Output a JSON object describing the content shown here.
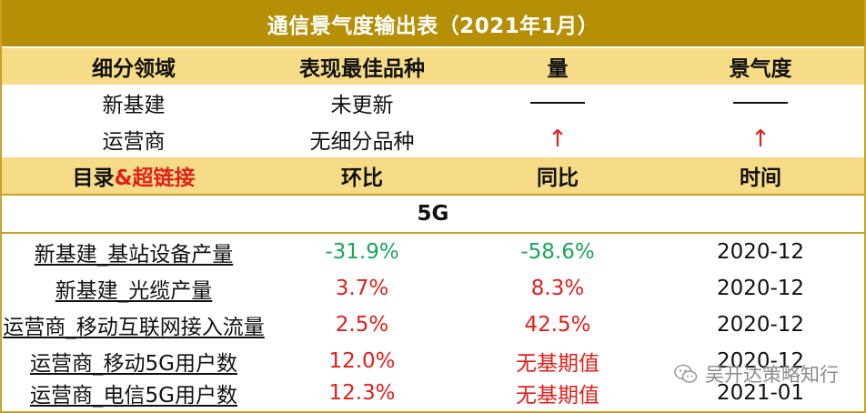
{
  "title": "通信景气度输出表（2021年1月）",
  "summary_header": {
    "col1": "细分领域",
    "col2": "表现最佳品种",
    "col3": "量",
    "col4": "景气度"
  },
  "summary_rows": [
    {
      "domain": "新基建",
      "best": "未更新",
      "volume": "",
      "climate": ""
    },
    {
      "domain": "运营商",
      "best": "无细分品种",
      "volume": "↑",
      "climate": "↑"
    }
  ],
  "detail_header": {
    "col1_main": "目录",
    "col1_link": "&超链接",
    "col2": "环比",
    "col3": "同比",
    "col4": "时间"
  },
  "section_label": "5G",
  "detail_rows": [
    {
      "name": "新基建_基站设备产量",
      "mom": "-31.9%",
      "yoy": "-58.6%",
      "time": "2020-12"
    },
    {
      "name": "新基建_光缆产量",
      "mom": "3.7%",
      "yoy": "8.3%",
      "time": "2020-12"
    },
    {
      "name": "运营商_移动互联网接入流量",
      "mom": "2.5%",
      "yoy": "42.5%",
      "time": "2020-12"
    },
    {
      "name": "运营商_移动5G用户数",
      "mom": "12.0%",
      "yoy": "无基期值",
      "time": "2020-12"
    },
    {
      "name": "运营商_电信5G用户数",
      "mom": "12.3%",
      "yoy": "无基期值",
      "time": "2021-01"
    }
  ],
  "watermark": {
    "text": "吴开达策略知行",
    "icon": "wechat-icon"
  },
  "colors": {
    "title_bg": "#b58f06",
    "header_bg": "#f7dc87",
    "negative": "#1aa55a",
    "positive": "#e0201b"
  }
}
